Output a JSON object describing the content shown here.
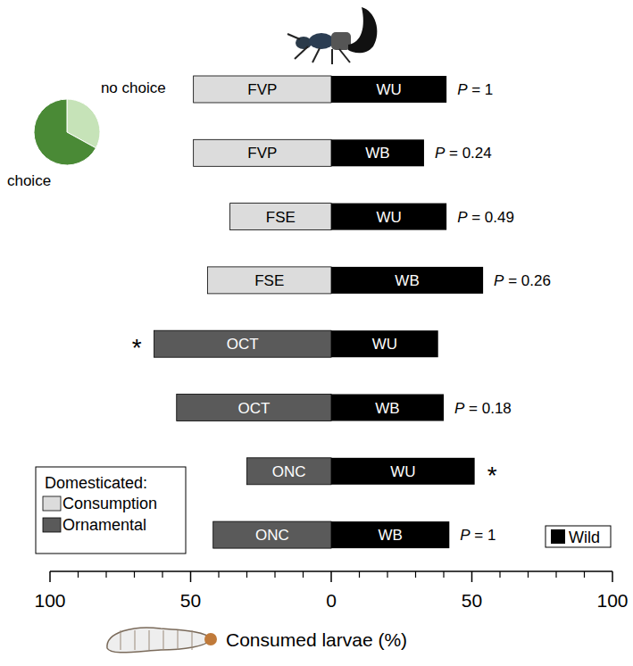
{
  "chart_data": [
    {
      "type": "bar",
      "orientation": "horizontal",
      "stacked": false,
      "x_label": "Consumed larvae (%)",
      "xlim": [
        0,
        100
      ],
      "xticks": [
        0,
        50,
        100
      ],
      "minor_xticks": [
        10,
        20,
        30,
        40,
        60,
        70,
        80,
        90
      ],
      "legend_title": "Domesticated:",
      "color_groups": [
        {
          "name": "Consumption",
          "color": "#dcdcdc"
        },
        {
          "name": "Ornamental",
          "color": "#5a5a5a"
        }
      ],
      "series": [
        {
          "name": "Domesticated",
          "bar_labels": [
            "FVP",
            "FVP",
            "FSE",
            "FSE",
            "OCT",
            "OCT",
            "ONC",
            "ONC"
          ],
          "colors": [
            "#dcdcdc",
            "#dcdcdc",
            "#dcdcdc",
            "#dcdcdc",
            "#5a5a5a",
            "#5a5a5a",
            "#5a5a5a",
            "#5a5a5a"
          ],
          "values": [
            49,
            49,
            36,
            44,
            63,
            55,
            30,
            42
          ]
        },
        {
          "name": "Wild",
          "color": "#000000",
          "bar_labels": [
            "WU",
            "WB",
            "WU",
            "WB",
            "WU",
            "WB",
            "WU",
            "WB"
          ],
          "values": [
            41,
            33,
            41,
            54,
            38,
            40,
            51,
            42
          ]
        }
      ],
      "annotations": [
        "P = 1",
        "P = 0.24",
        "P = 0.49",
        "P = 0.26",
        "*",
        "P = 0.18",
        "*",
        "P = 1"
      ]
    },
    {
      "type": "pie",
      "categories": [
        "no choice",
        "choice"
      ],
      "values": [
        33,
        67
      ],
      "colors": [
        "#c6e3b8",
        "#4a8a36"
      ]
    }
  ]
}
